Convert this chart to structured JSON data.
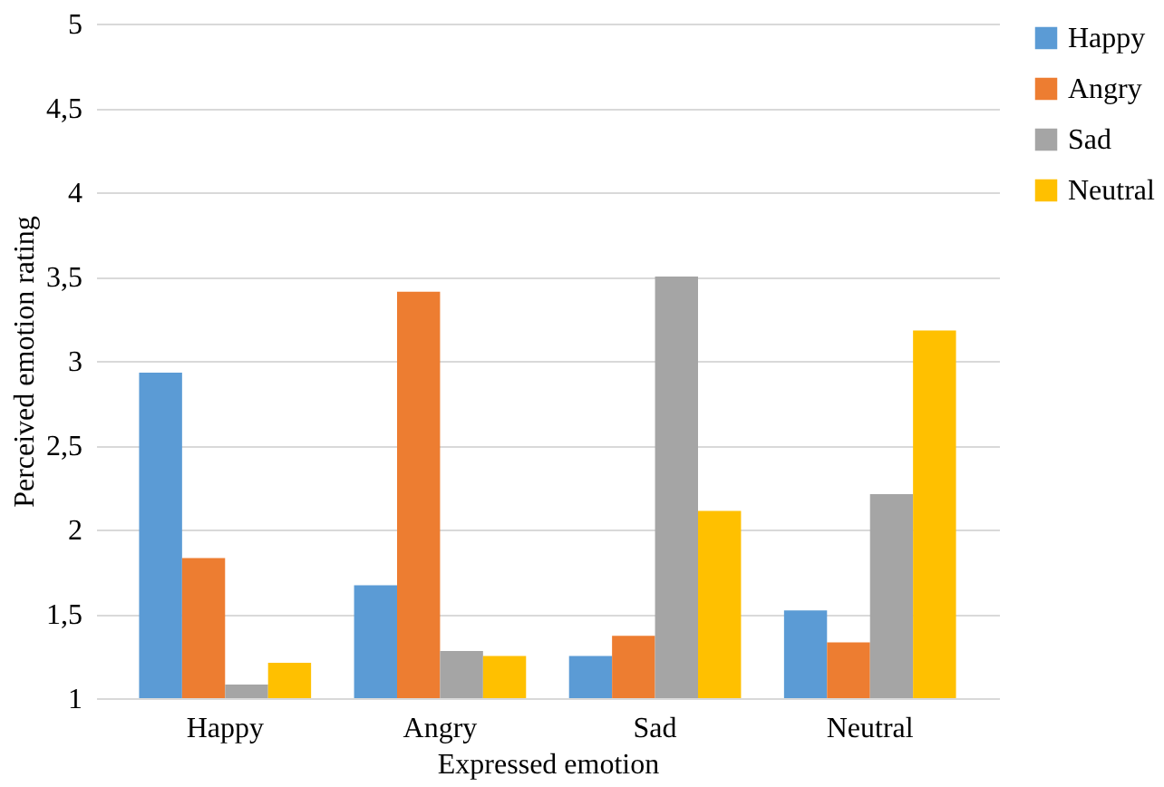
{
  "chart_data": {
    "type": "bar",
    "xlabel": "Expressed emotion",
    "ylabel": "Perceived  emotion rating",
    "categories": [
      "Happy",
      "Angry",
      "Sad",
      "Neutral"
    ],
    "series": [
      {
        "name": "Happy",
        "color": "#5b9bd5",
        "values": [
          2.93,
          1.67,
          1.25,
          1.52
        ]
      },
      {
        "name": "Angry",
        "color": "#ed7d31",
        "values": [
          1.83,
          3.41,
          1.37,
          1.33
        ]
      },
      {
        "name": "Sad",
        "color": "#a5a5a5",
        "values": [
          1.08,
          1.28,
          3.5,
          2.21
        ]
      },
      {
        "name": "Neutral",
        "color": "#ffc000",
        "values": [
          1.21,
          1.25,
          2.11,
          3.18
        ]
      }
    ],
    "ylim": [
      1,
      5
    ],
    "yticks": [
      1,
      {
        "value": 1.5,
        "label": "1,5"
      },
      2,
      {
        "value": 2.5,
        "label": "2,5"
      },
      3,
      {
        "value": 3.5,
        "label": "3,5"
      },
      4,
      {
        "value": 4.5,
        "label": "4,5"
      },
      5
    ],
    "grid": "y",
    "legend": "right"
  }
}
